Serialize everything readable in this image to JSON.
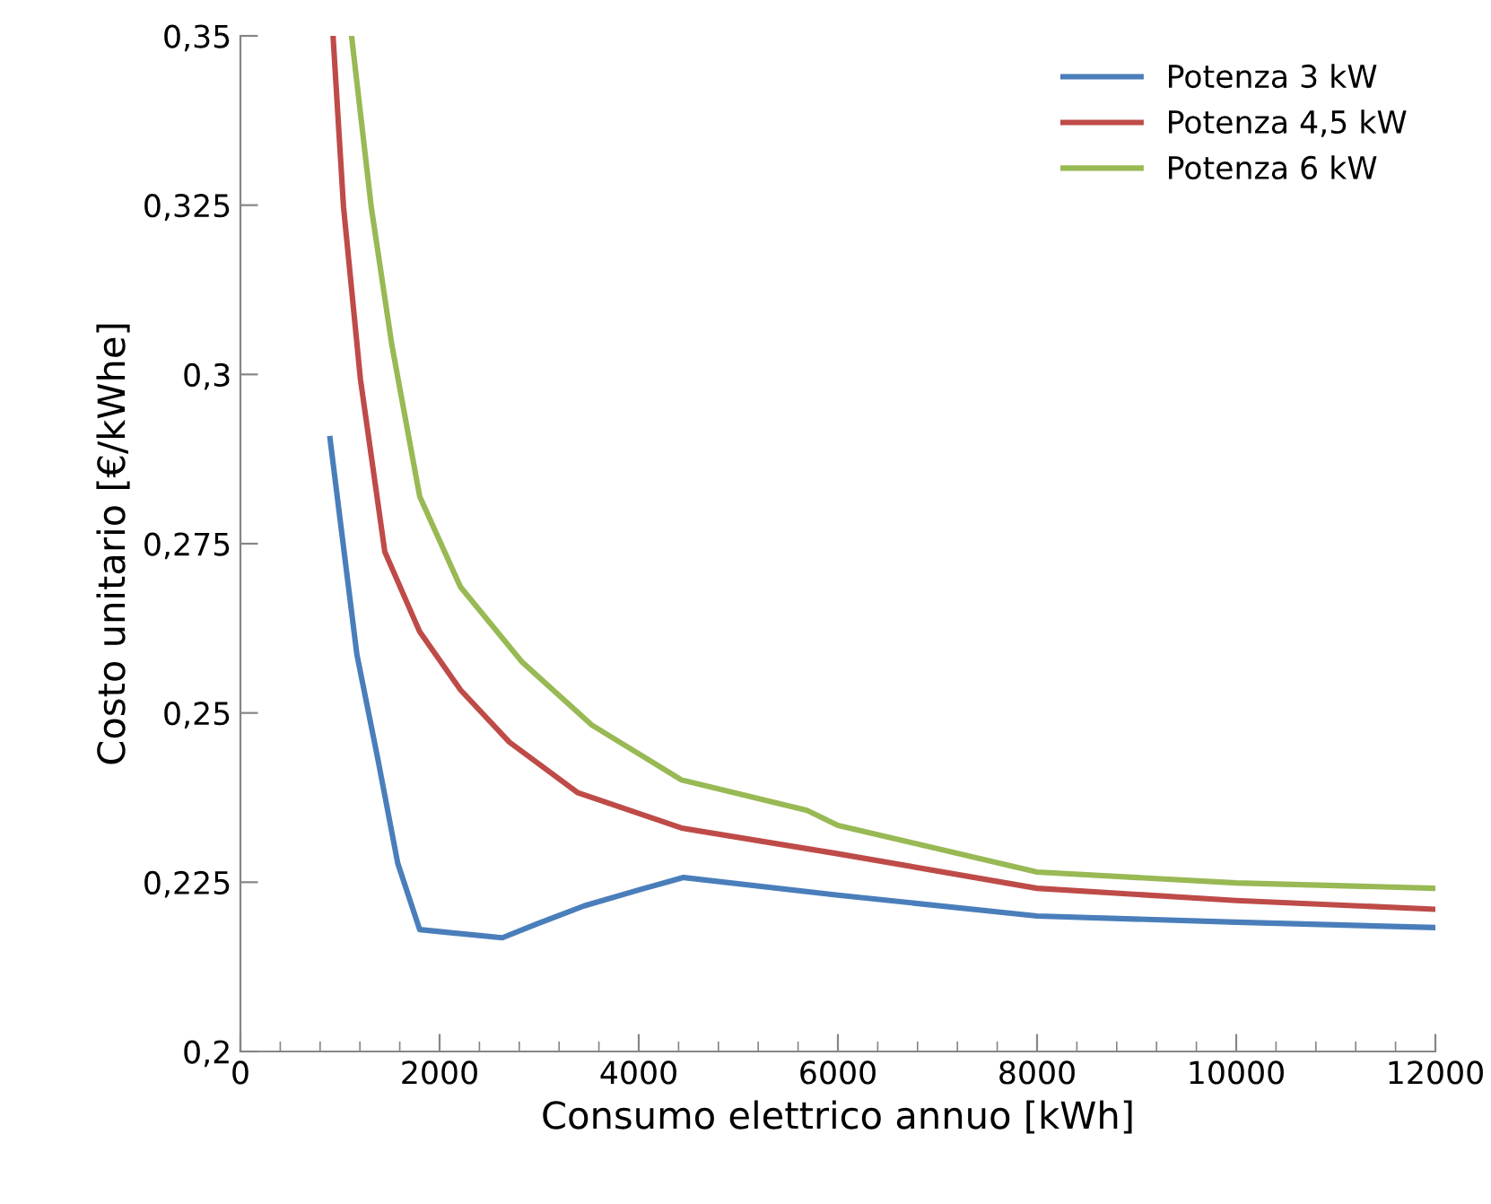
{
  "chart_data": {
    "type": "line",
    "xlabel": "Consumo elettrico annuo [kWh]",
    "ylabel": "Costo unitario [€/kWhe]",
    "xlim": [
      0,
      12000
    ],
    "ylim": [
      0.2,
      0.35
    ],
    "xticks": [
      0,
      {
        "value": 400,
        "label": null
      },
      {
        "value": 800,
        "label": null
      },
      {
        "value": 1200,
        "label": null
      },
      {
        "value": 1600,
        "label": null
      },
      2000,
      {
        "value": 2400,
        "label": null
      },
      {
        "value": 2800,
        "label": null
      },
      {
        "value": 3200,
        "label": null
      },
      {
        "value": 3600,
        "label": null
      },
      4000,
      {
        "value": 4400,
        "label": null
      },
      {
        "value": 4800,
        "label": null
      },
      {
        "value": 5200,
        "label": null
      },
      {
        "value": 5600,
        "label": null
      },
      6000,
      {
        "value": 6400,
        "label": null
      },
      {
        "value": 6800,
        "label": null
      },
      {
        "value": 7200,
        "label": null
      },
      {
        "value": 7600,
        "label": null
      },
      8000,
      {
        "value": 8400,
        "label": null
      },
      {
        "value": 8800,
        "label": null
      },
      {
        "value": 9200,
        "label": null
      },
      {
        "value": 9600,
        "label": null
      },
      10000,
      {
        "value": 10400,
        "label": null
      },
      {
        "value": 10800,
        "label": null
      },
      {
        "value": 11200,
        "label": null
      },
      {
        "value": 11600,
        "label": null
      },
      12000
    ],
    "yticks": [
      {
        "value": 0.2,
        "label": "0,2"
      },
      {
        "value": 0.225,
        "label": "0,225"
      },
      {
        "value": 0.25,
        "label": "0,25"
      },
      {
        "value": 0.275,
        "label": "0,275"
      },
      {
        "value": 0.3,
        "label": "0,3"
      },
      {
        "value": 0.325,
        "label": "0,325"
      },
      {
        "value": 0.35,
        "label": "0,35"
      }
    ],
    "grid": false,
    "legend": "top right",
    "marker": "none",
    "line_style": "solid",
    "series": [
      {
        "name": "Potenza 3 kW",
        "color": "#4a7ebb",
        "x": [
          900,
          1170,
          1380,
          1580,
          1800,
          2630,
          2970,
          3450,
          4010,
          4450,
          6000,
          8000,
          10000,
          12000
        ],
        "values": [
          0.2905,
          0.2586,
          0.2432,
          0.2278,
          0.218,
          0.2168,
          0.2188,
          0.2215,
          0.2239,
          0.2257,
          0.2231,
          0.22,
          0.2191,
          0.2183
        ]
      },
      {
        "name": "Potenza 4,5 kW",
        "color": "#be4b48",
        "x": [
          930,
          1035,
          1205,
          1450,
          1800,
          2210,
          2700,
          3390,
          4430,
          6000,
          8000,
          10000,
          12000
        ],
        "values": [
          0.35,
          0.3248,
          0.2993,
          0.2738,
          0.262,
          0.2534,
          0.2457,
          0.2382,
          0.233,
          0.2292,
          0.2241,
          0.2223,
          0.221
        ]
      },
      {
        "name": "Potenza 6 kW",
        "color": "#98b954",
        "x": [
          1116,
          1313,
          1520,
          1800,
          2210,
          2830,
          3530,
          4430,
          5690,
          6000,
          8000,
          10000,
          12000
        ],
        "values": [
          0.35,
          0.3248,
          0.3044,
          0.282,
          0.2686,
          0.2575,
          0.2482,
          0.2401,
          0.2356,
          0.2334,
          0.2265,
          0.2249,
          0.2241
        ]
      }
    ]
  }
}
